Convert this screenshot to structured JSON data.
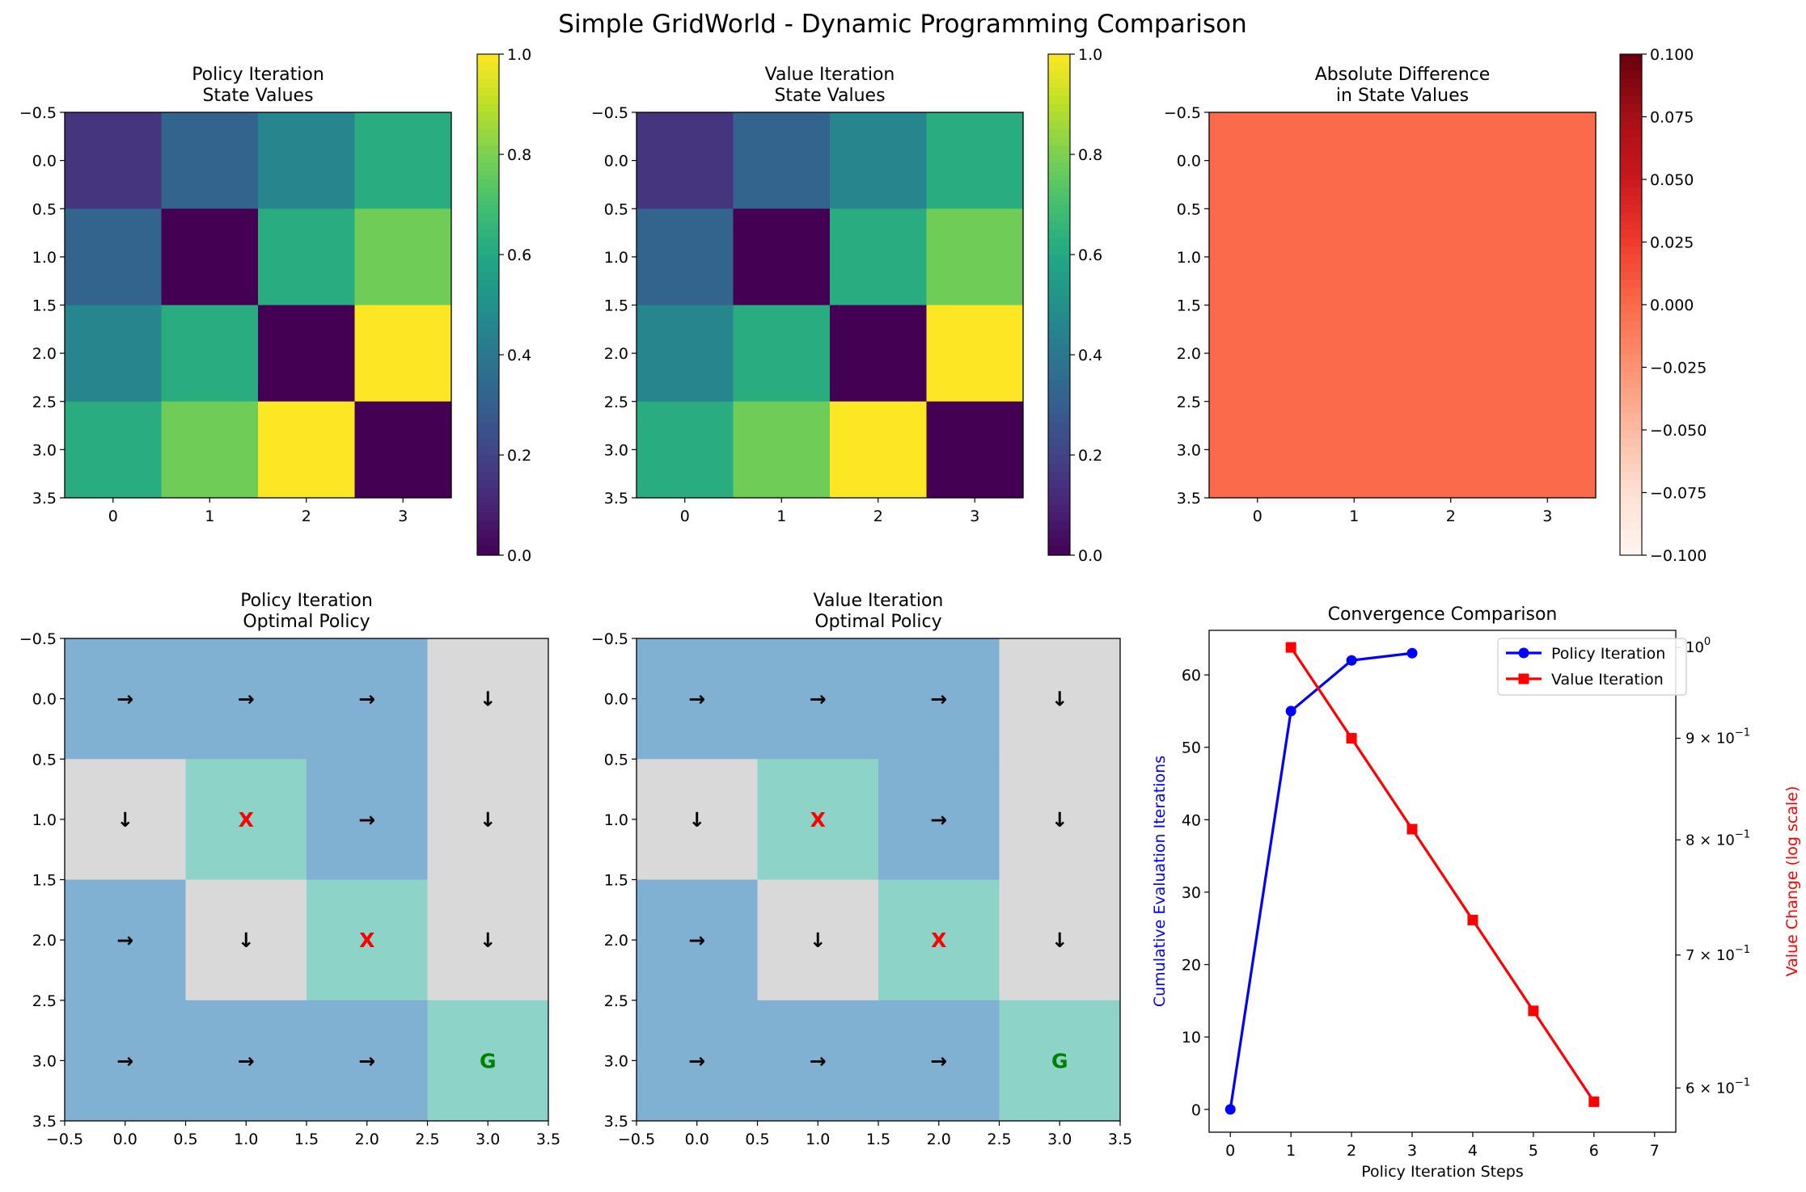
{
  "figure": {
    "suptitle": "Simple GridWorld - Dynamic Programming Comparison"
  },
  "colors": {
    "policy_series": "#0000ff",
    "value_series": "#ff0000",
    "arrow_cell": "#80b1d3",
    "down_cell": "#d9d9d9",
    "special_cell": "#8dd3c7",
    "obstacle_mark": "#ff0000",
    "goal_mark": "#008000",
    "diff_cell": "#fb6a4a"
  },
  "chart_data": [
    {
      "id": "pi_values",
      "type": "heatmap",
      "title_lines": [
        "Policy Iteration",
        "State Values"
      ],
      "colormap": "viridis",
      "vmin": 0,
      "vmax": 1,
      "values": [
        [
          0.15,
          0.32,
          0.45,
          0.62
        ],
        [
          0.32,
          0.0,
          0.62,
          0.78
        ],
        [
          0.45,
          0.62,
          0.0,
          1.0
        ],
        [
          0.62,
          0.78,
          1.0,
          0.0
        ]
      ],
      "xticks": [
        "0",
        "1",
        "2",
        "3"
      ],
      "yticks": [
        "−0.5",
        "0.0",
        "0.5",
        "1.0",
        "1.5",
        "2.0",
        "2.5",
        "3.0",
        "3.5"
      ],
      "colorbar_ticks": [
        "0.0",
        "0.2",
        "0.4",
        "0.6",
        "0.8",
        "1.0"
      ]
    },
    {
      "id": "vi_values",
      "type": "heatmap",
      "title_lines": [
        "Value Iteration",
        "State Values"
      ],
      "colormap": "viridis",
      "vmin": 0,
      "vmax": 1,
      "values": [
        [
          0.15,
          0.32,
          0.45,
          0.62
        ],
        [
          0.32,
          0.0,
          0.62,
          0.78
        ],
        [
          0.45,
          0.62,
          0.0,
          1.0
        ],
        [
          0.62,
          0.78,
          1.0,
          0.0
        ]
      ],
      "xticks": [
        "0",
        "1",
        "2",
        "3"
      ],
      "yticks": [
        "−0.5",
        "0.0",
        "0.5",
        "1.0",
        "1.5",
        "2.0",
        "2.5",
        "3.0",
        "3.5"
      ],
      "colorbar_ticks": [
        "0.0",
        "0.2",
        "0.4",
        "0.6",
        "0.8",
        "1.0"
      ]
    },
    {
      "id": "abs_diff",
      "type": "heatmap",
      "title_lines": [
        "Absolute Difference",
        "in State Values"
      ],
      "colormap": "Reds",
      "vmin": -0.1,
      "vmax": 0.1,
      "values": [
        [
          0,
          0,
          0,
          0
        ],
        [
          0,
          0,
          0,
          0
        ],
        [
          0,
          0,
          0,
          0
        ],
        [
          0,
          0,
          0,
          0
        ]
      ],
      "xticks": [
        "0",
        "1",
        "2",
        "3"
      ],
      "yticks": [
        "−0.5",
        "0.0",
        "0.5",
        "1.0",
        "1.5",
        "2.0",
        "2.5",
        "3.0",
        "3.5"
      ],
      "colorbar_ticks": [
        "−0.100",
        "−0.075",
        "−0.050",
        "−0.025",
        "0.000",
        "0.025",
        "0.050",
        "0.075",
        "0.100"
      ]
    },
    {
      "id": "pi_policy",
      "type": "table",
      "title_lines": [
        "Policy Iteration",
        "Optimal Policy"
      ],
      "grid": [
        [
          "→",
          "→",
          "→",
          "↓"
        ],
        [
          "↓",
          "X",
          "→",
          "↓"
        ],
        [
          "→",
          "↓",
          "X",
          "↓"
        ],
        [
          "→",
          "→",
          "→",
          "G"
        ]
      ],
      "xticks": [
        "−0.5",
        "0.0",
        "0.5",
        "1.0",
        "1.5",
        "2.0",
        "2.5",
        "3.0",
        "3.5"
      ],
      "yticks": [
        "−0.5",
        "0.0",
        "0.5",
        "1.0",
        "1.5",
        "2.0",
        "2.5",
        "3.0",
        "3.5"
      ]
    },
    {
      "id": "vi_policy",
      "type": "table",
      "title_lines": [
        "Value Iteration",
        "Optimal Policy"
      ],
      "grid": [
        [
          "→",
          "→",
          "→",
          "↓"
        ],
        [
          "↓",
          "X",
          "→",
          "↓"
        ],
        [
          "→",
          "↓",
          "X",
          "↓"
        ],
        [
          "→",
          "→",
          "→",
          "G"
        ]
      ],
      "xticks": [
        "−0.5",
        "0.0",
        "0.5",
        "1.0",
        "1.5",
        "2.0",
        "2.5",
        "3.0",
        "3.5"
      ],
      "yticks": [
        "−0.5",
        "0.0",
        "0.5",
        "1.0",
        "1.5",
        "2.0",
        "2.5",
        "3.0",
        "3.5"
      ]
    },
    {
      "id": "convergence",
      "type": "line",
      "title": "Convergence Comparison",
      "xlabel": "Policy Iteration Steps",
      "ylabel_left": "Cumulative Evaluation Iterations",
      "ylabel_right": "Value Change (log scale)",
      "xlim": [
        -0.35,
        7.35
      ],
      "ylim_left": [
        -3.15,
        66.15
      ],
      "ylim_right": [
        0.57,
        1.02
      ],
      "yscale_right": "log",
      "xticks": [
        "0",
        "1",
        "2",
        "3",
        "4",
        "5",
        "6",
        "7"
      ],
      "yticks_left": [
        "0",
        "10",
        "20",
        "30",
        "40",
        "50",
        "60"
      ],
      "yticks_right": [
        {
          "value": 1.0,
          "base": "10",
          "exp": "0",
          "coef": ""
        },
        {
          "value": 0.9,
          "base": "10",
          "exp": "−1",
          "coef": "9 × "
        },
        {
          "value": 0.8,
          "base": "10",
          "exp": "−1",
          "coef": "8 × "
        },
        {
          "value": 0.7,
          "base": "10",
          "exp": "−1",
          "coef": "7 × "
        },
        {
          "value": 0.6,
          "base": "10",
          "exp": "−1",
          "coef": "6 × "
        }
      ],
      "legend": "upper right",
      "series": [
        {
          "name": "Policy Iteration",
          "axis": "left",
          "marker": "circle",
          "x": [
            0,
            1,
            2,
            3
          ],
          "y": [
            0,
            55,
            62,
            63
          ]
        },
        {
          "name": "Value Iteration",
          "axis": "right",
          "marker": "square",
          "x": [
            1,
            2,
            3,
            4,
            5,
            6
          ],
          "y": [
            1.0,
            0.9,
            0.81,
            0.729,
            0.6561,
            0.59049
          ]
        }
      ]
    }
  ]
}
